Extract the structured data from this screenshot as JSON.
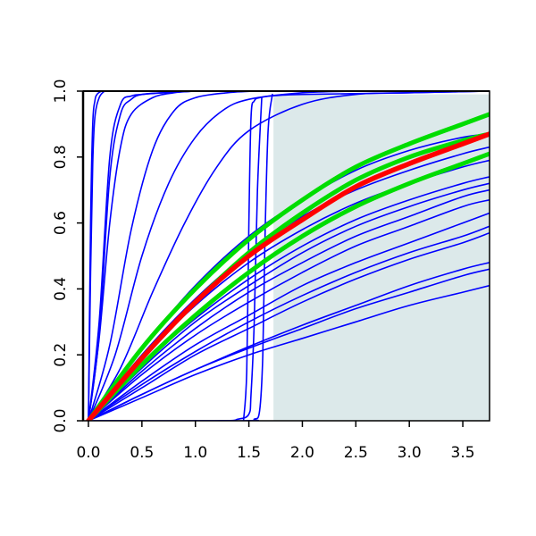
{
  "chart_data": {
    "type": "line",
    "title": "",
    "xlabel": "",
    "ylabel": "",
    "xlim": [
      -0.05,
      3.75
    ],
    "ylim": [
      0,
      1.0
    ],
    "grid": false,
    "legend": "none",
    "x_ticks": [
      {
        "value": 0.0,
        "label": "0.0"
      },
      {
        "value": 0.5,
        "label": "0.5"
      },
      {
        "value": 1.0,
        "label": "1.0"
      },
      {
        "value": 1.5,
        "label": "1.5"
      },
      {
        "value": 2.0,
        "label": "2.0"
      },
      {
        "value": 2.5,
        "label": "2.5"
      },
      {
        "value": 3.0,
        "label": "3.0"
      },
      {
        "value": 3.5,
        "label": "3.5"
      }
    ],
    "y_ticks": [
      {
        "value": 0.0,
        "label": "0.0"
      },
      {
        "value": 0.2,
        "label": "0.2"
      },
      {
        "value": 0.4,
        "label": "0.4"
      },
      {
        "value": 0.6,
        "label": "0.6"
      },
      {
        "value": 0.8,
        "label": "0.8"
      },
      {
        "value": 1.0,
        "label": "1.0"
      }
    ],
    "shaded_region": {
      "x_from": 1.73,
      "x_to": 3.75,
      "y_from": 0,
      "y_to": 0.99,
      "color": "#dce9ea"
    },
    "colors": {
      "curve": "#0000ff",
      "highlight": "#ff0000",
      "bound": "#00dd00",
      "axis": "#000000"
    },
    "series": [
      {
        "role": "curve",
        "x": [
          0,
          0.02,
          0.04,
          0.06,
          0.08,
          0.12
        ],
        "y": [
          0,
          0.6,
          0.9,
          0.97,
          0.99,
          1.0
        ]
      },
      {
        "role": "curve",
        "x": [
          0,
          0.02,
          0.04,
          0.06,
          0.1,
          0.15
        ],
        "y": [
          0,
          0.45,
          0.78,
          0.92,
          0.98,
          1.0
        ]
      },
      {
        "role": "curve",
        "x": [
          0,
          0.1,
          0.2,
          0.3,
          0.4,
          0.5,
          0.7,
          1.0
        ],
        "y": [
          0,
          0.3,
          0.8,
          0.96,
          0.985,
          0.99,
          0.995,
          1.0
        ]
      },
      {
        "role": "curve",
        "x": [
          0,
          0.1,
          0.2,
          0.3,
          0.4,
          0.5,
          0.7,
          1.0
        ],
        "y": [
          0,
          0.26,
          0.74,
          0.93,
          0.975,
          0.99,
          0.995,
          1.0
        ]
      },
      {
        "role": "curve",
        "x": [
          0,
          0.1,
          0.2,
          0.3,
          0.4,
          0.6,
          0.8,
          1.0
        ],
        "y": [
          0,
          0.25,
          0.6,
          0.83,
          0.93,
          0.98,
          0.995,
          1.0
        ]
      },
      {
        "role": "curve",
        "x": [
          0,
          0.2,
          0.4,
          0.6,
          0.8,
          1.0,
          1.3,
          1.6,
          2.0
        ],
        "y": [
          0,
          0.23,
          0.58,
          0.82,
          0.94,
          0.98,
          0.995,
          1.0,
          1.0
        ]
      },
      {
        "role": "curve",
        "x": [
          0,
          0.25,
          0.5,
          0.75,
          1.0,
          1.25,
          1.5,
          2.0,
          2.5
        ],
        "y": [
          0,
          0.2,
          0.5,
          0.72,
          0.86,
          0.94,
          0.975,
          0.995,
          1.0
        ]
      },
      {
        "role": "curve",
        "x": [
          0,
          0.3,
          0.6,
          0.9,
          1.2,
          1.5,
          2.0,
          2.5,
          3.0,
          3.75
        ],
        "y": [
          0,
          0.16,
          0.39,
          0.6,
          0.77,
          0.88,
          0.96,
          0.99,
          0.995,
          1.0
        ]
      },
      {
        "role": "curve",
        "x": [
          1.45,
          1.48,
          1.5,
          1.52,
          1.55,
          1.6,
          1.7,
          2.0,
          3.0,
          3.75
        ],
        "y": [
          0,
          0.15,
          0.6,
          0.92,
          0.97,
          0.98,
          0.985,
          0.99,
          0.995,
          1.0
        ]
      },
      {
        "role": "curve",
        "x": [
          0,
          1.2,
          1.4,
          1.5,
          1.52,
          1.55,
          1.58,
          1.62
        ],
        "y": [
          0,
          0,
          0.005,
          0.02,
          0.08,
          0.3,
          0.7,
          0.98
        ]
      },
      {
        "role": "curve",
        "x": [
          0,
          1.45,
          1.55,
          1.6,
          1.63,
          1.65,
          1.68,
          1.72
        ],
        "y": [
          0,
          0,
          0.005,
          0.03,
          0.2,
          0.55,
          0.88,
          0.99
        ]
      },
      {
        "role": "curve",
        "x": [
          0,
          0.5,
          1.0,
          1.5,
          2.0,
          2.5,
          3.0,
          3.5,
          3.75
        ],
        "y": [
          0,
          0.22,
          0.41,
          0.56,
          0.67,
          0.76,
          0.82,
          0.86,
          0.87
        ]
      },
      {
        "role": "curve",
        "x": [
          0,
          0.5,
          1.0,
          1.5,
          2.0,
          2.5,
          3.0,
          3.5,
          3.75
        ],
        "y": [
          0,
          0.2,
          0.37,
          0.51,
          0.62,
          0.7,
          0.76,
          0.81,
          0.83
        ]
      },
      {
        "role": "curve",
        "x": [
          0,
          0.5,
          1.0,
          1.5,
          2.0,
          2.5,
          3.0,
          3.5,
          3.75
        ],
        "y": [
          0,
          0.19,
          0.35,
          0.48,
          0.58,
          0.66,
          0.72,
          0.77,
          0.79
        ]
      },
      {
        "role": "curve",
        "x": [
          0,
          0.5,
          1.0,
          1.5,
          2.0,
          2.5,
          3.0,
          3.5,
          3.75
        ],
        "y": [
          0,
          0.17,
          0.31,
          0.43,
          0.53,
          0.61,
          0.67,
          0.72,
          0.74
        ]
      },
      {
        "role": "curve",
        "x": [
          0,
          0.5,
          1.0,
          1.5,
          2.0,
          2.5,
          3.0,
          3.5,
          3.75
        ],
        "y": [
          0,
          0.16,
          0.3,
          0.41,
          0.51,
          0.59,
          0.65,
          0.7,
          0.72
        ]
      },
      {
        "role": "curve",
        "x": [
          0,
          0.5,
          1.0,
          1.5,
          2.0,
          2.5,
          3.0,
          3.5,
          3.75
        ],
        "y": [
          0,
          0.15,
          0.28,
          0.39,
          0.48,
          0.56,
          0.62,
          0.68,
          0.7
        ]
      },
      {
        "role": "curve",
        "x": [
          0,
          0.5,
          1.0,
          1.5,
          2.0,
          2.5,
          3.0,
          3.5,
          3.75
        ],
        "y": [
          0,
          0.14,
          0.26,
          0.36,
          0.45,
          0.53,
          0.59,
          0.65,
          0.67
        ]
      },
      {
        "role": "curve",
        "x": [
          0,
          0.5,
          1.0,
          1.5,
          2.0,
          2.5,
          3.0,
          3.5,
          3.75
        ],
        "y": [
          0,
          0.12,
          0.23,
          0.32,
          0.41,
          0.48,
          0.54,
          0.6,
          0.63
        ]
      },
      {
        "role": "curve",
        "x": [
          0,
          0.5,
          1.0,
          1.5,
          2.0,
          2.5,
          3.0,
          3.5,
          3.75
        ],
        "y": [
          0,
          0.11,
          0.21,
          0.3,
          0.38,
          0.45,
          0.51,
          0.56,
          0.59
        ]
      },
      {
        "role": "curve",
        "x": [
          0,
          0.5,
          1.0,
          1.5,
          2.0,
          2.5,
          3.0,
          3.5,
          3.75
        ],
        "y": [
          0,
          0.1,
          0.2,
          0.28,
          0.36,
          0.43,
          0.49,
          0.54,
          0.57
        ]
      },
      {
        "role": "curve",
        "x": [
          0,
          0.5,
          1.0,
          1.5,
          2.0,
          2.5,
          3.0,
          3.5,
          3.75
        ],
        "y": [
          0,
          0.08,
          0.155,
          0.22,
          0.28,
          0.34,
          0.39,
          0.44,
          0.46
        ]
      },
      {
        "role": "curve",
        "x": [
          0,
          0.5,
          1.0,
          1.5,
          2.0,
          2.5,
          3.0,
          3.5,
          3.75
        ],
        "y": [
          0,
          0.08,
          0.155,
          0.225,
          0.29,
          0.35,
          0.41,
          0.46,
          0.48
        ]
      },
      {
        "role": "curve",
        "x": [
          0,
          0.5,
          1.0,
          1.5,
          2.0,
          2.5,
          3.0,
          3.5,
          3.75
        ],
        "y": [
          0,
          0.07,
          0.14,
          0.2,
          0.25,
          0.3,
          0.35,
          0.39,
          0.41
        ]
      },
      {
        "role": "bound",
        "x": [
          0,
          0.5,
          1.0,
          1.5,
          2.0,
          2.5,
          3.0,
          3.5,
          3.75
        ],
        "y": [
          0,
          0.19,
          0.36,
          0.51,
          0.63,
          0.73,
          0.8,
          0.85,
          0.87
        ]
      },
      {
        "role": "bound",
        "x": [
          0,
          0.5,
          1.0,
          1.5,
          2.0,
          2.5,
          3.0,
          3.5,
          3.75
        ],
        "y": [
          0,
          0.22,
          0.4,
          0.55,
          0.67,
          0.77,
          0.84,
          0.9,
          0.93
        ]
      },
      {
        "role": "bound",
        "x": [
          0,
          0.5,
          1.0,
          1.5,
          2.0,
          2.5,
          3.0,
          3.5,
          3.75
        ],
        "y": [
          0,
          0.17,
          0.32,
          0.45,
          0.56,
          0.65,
          0.72,
          0.78,
          0.81
        ]
      },
      {
        "role": "highlight",
        "x": [
          0,
          0.5,
          1.0,
          1.5,
          2.0,
          2.5,
          3.0,
          3.5,
          3.75
        ],
        "y": [
          0,
          0.19,
          0.36,
          0.5,
          0.61,
          0.71,
          0.78,
          0.84,
          0.87
        ]
      }
    ]
  }
}
